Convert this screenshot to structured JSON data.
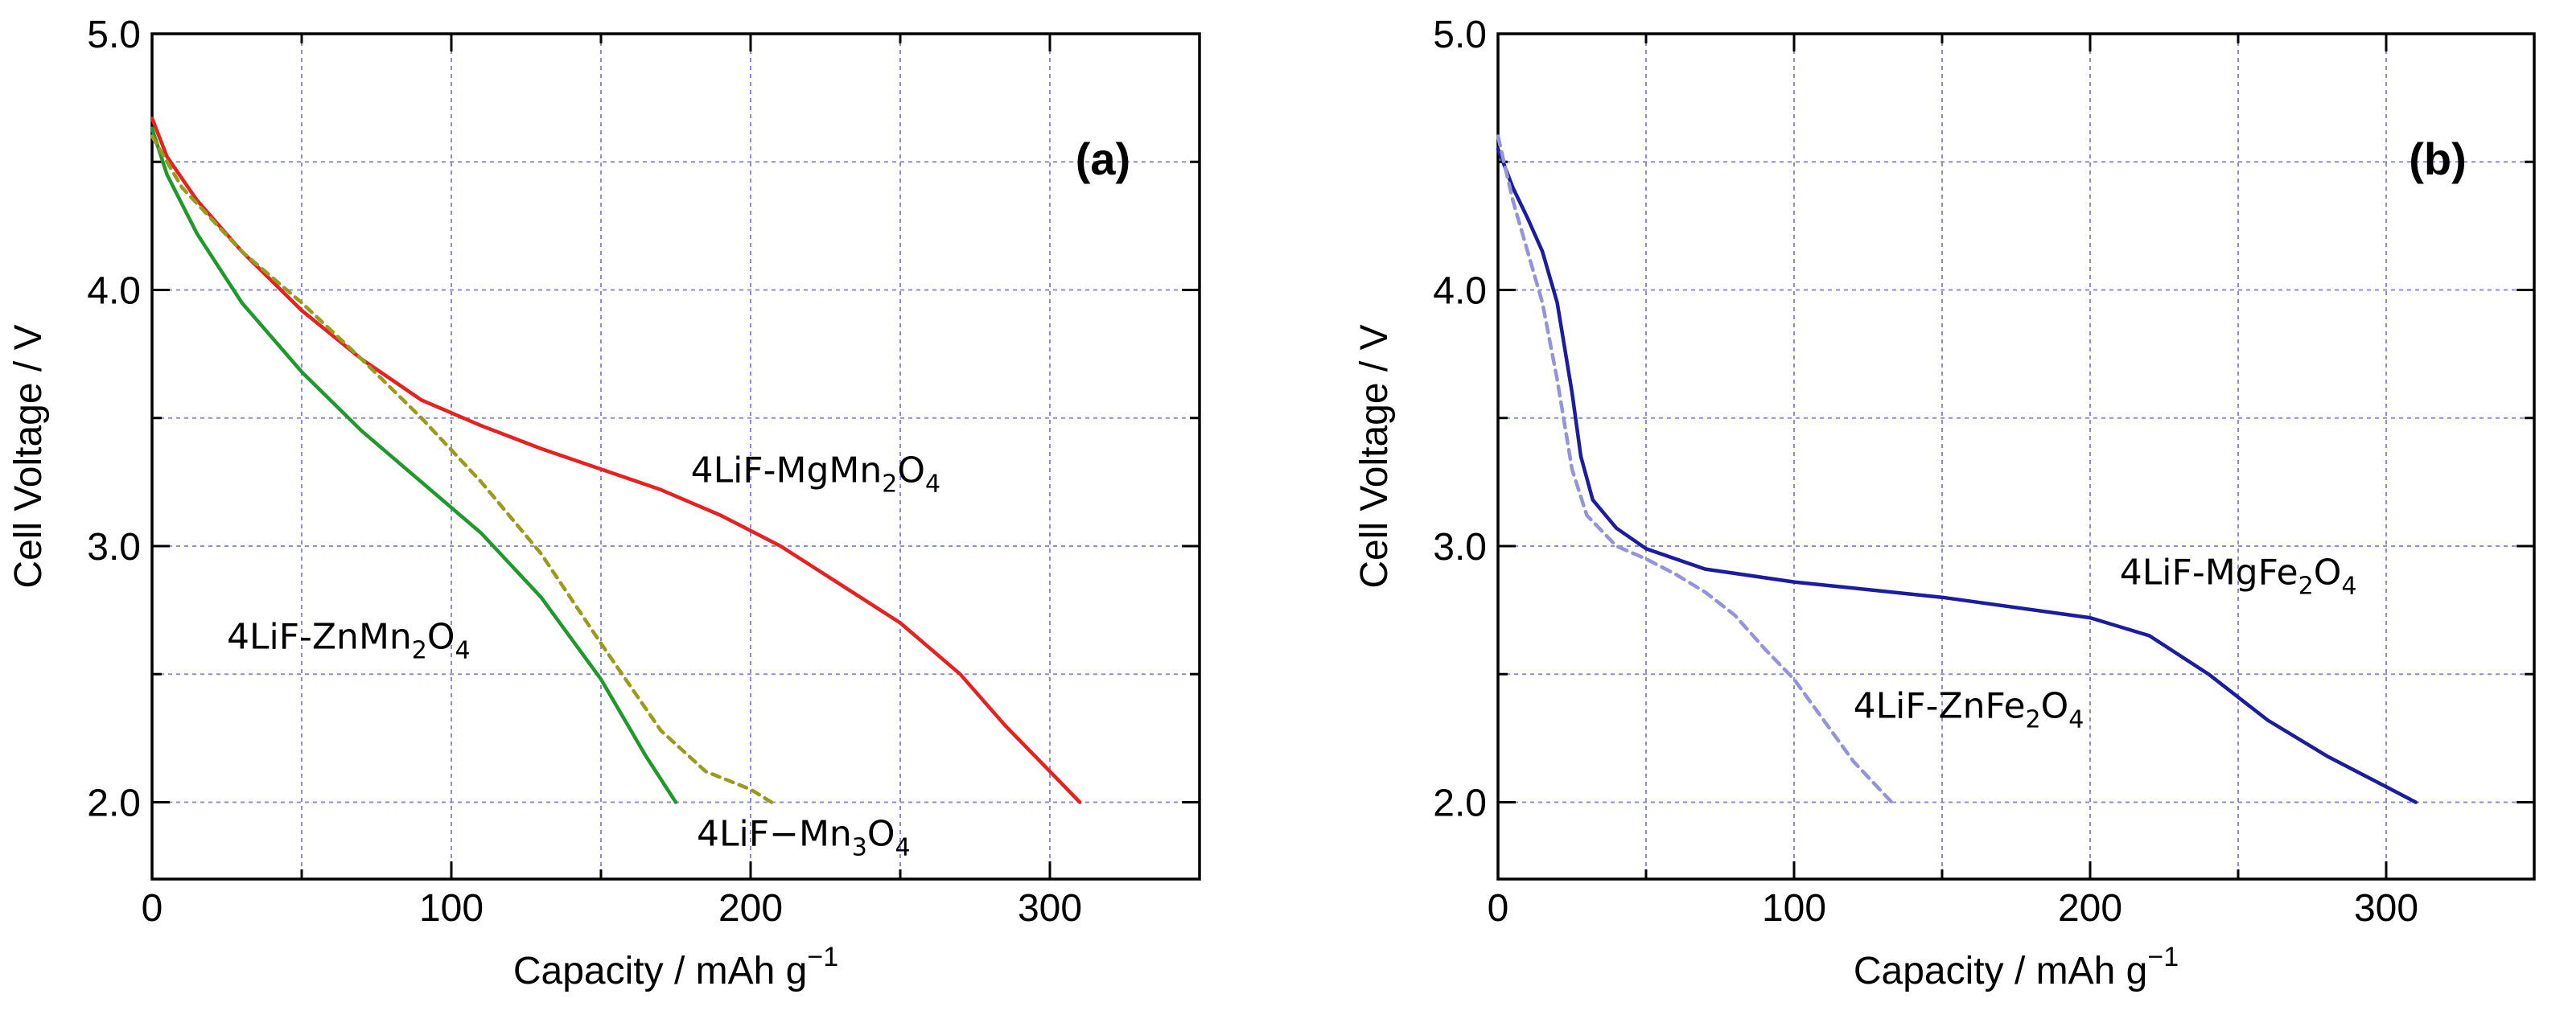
{
  "chart_data": [
    {
      "panel": "a",
      "type": "line",
      "panel_label": "(a)",
      "xlabel": "Capacity / mAh g",
      "xlabel_sup": "−1",
      "ylabel": "Cell Voltage / V",
      "xlim": [
        0,
        350
      ],
      "ylim": [
        1.7,
        5.0
      ],
      "xticks": [
        0,
        100,
        200,
        300
      ],
      "xtick_labels": [
        "0",
        "100",
        "200",
        "300"
      ],
      "yticks": [
        2.0,
        3.0,
        4.0,
        5.0
      ],
      "ytick_labels": [
        "2.0",
        "3.0",
        "4.0",
        "5.0"
      ],
      "grid": true,
      "series": [
        {
          "name": "4LiF-MgMn2O4",
          "label_main": "4LiF-MgMn",
          "label_sub1": "2",
          "label_mid": "O",
          "label_sub2": "4",
          "label_at": [
            180,
            3.25
          ],
          "color": "#e8201e",
          "dash": "",
          "x": [
            0,
            5,
            15,
            30,
            50,
            70,
            90,
            110,
            130,
            150,
            170,
            190,
            210,
            230,
            250,
            270,
            285,
            300,
            310
          ],
          "y": [
            4.67,
            4.52,
            4.35,
            4.15,
            3.92,
            3.73,
            3.57,
            3.47,
            3.38,
            3.3,
            3.22,
            3.12,
            3.0,
            2.85,
            2.7,
            2.5,
            2.3,
            2.12,
            2.0
          ]
        },
        {
          "name": "4LiF-ZnMn2O4",
          "label_main": "4LiF-ZnMn",
          "label_sub1": "2",
          "label_mid": "O",
          "label_sub2": "4",
          "label_at": [
            25,
            2.6
          ],
          "color": "#1e9a2a",
          "dash": "",
          "x": [
            0,
            5,
            15,
            30,
            50,
            70,
            90,
            110,
            130,
            150,
            165,
            175
          ],
          "y": [
            4.63,
            4.45,
            4.22,
            3.95,
            3.68,
            3.45,
            3.25,
            3.05,
            2.8,
            2.48,
            2.18,
            2.0
          ]
        },
        {
          "name": "4LiF-Mn3O4",
          "label_main": "4LiF−Mn",
          "label_sub1": "3",
          "label_mid": "O",
          "label_sub2": "4",
          "label_at": [
            182,
            1.83
          ],
          "color": "#9a9a1c",
          "dash": "10 8",
          "x": [
            0,
            10,
            30,
            50,
            70,
            90,
            110,
            130,
            150,
            170,
            185,
            200,
            207
          ],
          "y": [
            4.6,
            4.4,
            4.15,
            3.95,
            3.73,
            3.5,
            3.25,
            2.97,
            2.62,
            2.28,
            2.12,
            2.05,
            2.0
          ]
        }
      ]
    },
    {
      "panel": "b",
      "type": "line",
      "panel_label": "(b)",
      "xlabel": "Capacity / mAh g",
      "xlabel_sup": "−1",
      "ylabel": "Cell Voltage / V",
      "xlim": [
        0,
        350
      ],
      "ylim": [
        1.7,
        5.0
      ],
      "xticks": [
        0,
        100,
        200,
        300
      ],
      "xtick_labels": [
        "0",
        "100",
        "200",
        "300"
      ],
      "yticks": [
        2.0,
        3.0,
        4.0,
        5.0
      ],
      "ytick_labels": [
        "2.0",
        "3.0",
        "4.0",
        "5.0"
      ],
      "grid": true,
      "series": [
        {
          "name": "4LiF-MgFe2O4",
          "label_main": "4LiF-MgFe",
          "label_sub1": "2",
          "label_mid": "O",
          "label_sub2": "4",
          "label_at": [
            210,
            2.85
          ],
          "color": "#1c1ca0",
          "dash": "",
          "x": [
            0,
            5,
            10,
            15,
            20,
            25,
            28,
            32,
            40,
            50,
            70,
            100,
            150,
            200,
            220,
            240,
            260,
            280,
            300,
            310
          ],
          "y": [
            4.55,
            4.4,
            4.28,
            4.15,
            3.95,
            3.6,
            3.35,
            3.18,
            3.07,
            2.99,
            2.91,
            2.86,
            2.8,
            2.72,
            2.65,
            2.5,
            2.32,
            2.18,
            2.06,
            2.0
          ]
        },
        {
          "name": "4LiF-ZnFe2O4",
          "label_main": "4LiF-ZnFe",
          "label_sub1": "2",
          "label_mid": "O",
          "label_sub2": "4",
          "label_at": [
            120,
            2.33
          ],
          "color": "#9494dc",
          "dash": "12 8",
          "x": [
            0,
            5,
            10,
            15,
            20,
            25,
            30,
            40,
            50,
            60,
            70,
            80,
            90,
            100,
            110,
            120,
            133
          ],
          "y": [
            4.6,
            4.35,
            4.15,
            3.95,
            3.65,
            3.3,
            3.12,
            3.0,
            2.95,
            2.89,
            2.82,
            2.73,
            2.6,
            2.48,
            2.32,
            2.16,
            2.0
          ]
        }
      ]
    }
  ]
}
